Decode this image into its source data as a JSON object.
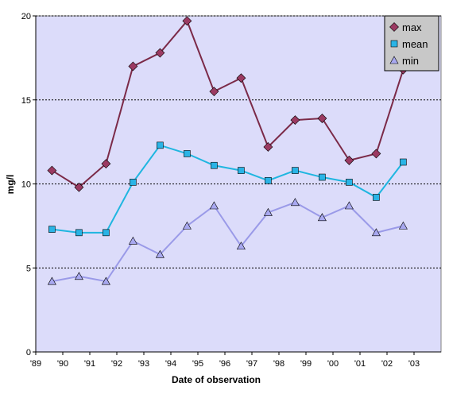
{
  "chart_data": {
    "type": "line",
    "xlabel": "Date of observation",
    "ylabel": "mg/l",
    "ylim": [
      0,
      20
    ],
    "yticks": [
      0,
      5,
      10,
      15,
      20
    ],
    "xticks": [
      "'89",
      "'90",
      "'91",
      "'92",
      "'93",
      "'94",
      "'95",
      "'96",
      "'97",
      "'98",
      "'99",
      "'00",
      "'01",
      "'02",
      "'03"
    ],
    "grid": "horizontal dashed",
    "legend_position": "top-right",
    "plot_background": "#dcdcfa",
    "series": [
      {
        "name": "max",
        "color": "#7b2a48",
        "marker_color": "#9b3a62",
        "marker": "diamond",
        "x": [
          1989.6,
          1990.6,
          1991.6,
          1992.6,
          1993.6,
          1994.6,
          1995.6,
          1996.6,
          1997.6,
          1998.6,
          1999.6,
          2000.6,
          2001.6,
          2002.6
        ],
        "values": [
          10.8,
          9.8,
          11.2,
          17.0,
          17.8,
          19.7,
          15.5,
          16.3,
          12.2,
          13.8,
          13.9,
          11.4,
          11.8,
          16.8
        ]
      },
      {
        "name": "mean",
        "color": "#1fb6e0",
        "marker_color": "#2ab4e6",
        "marker": "square",
        "x": [
          1989.6,
          1990.6,
          1991.6,
          1992.6,
          1993.6,
          1994.6,
          1995.6,
          1996.6,
          1997.6,
          1998.6,
          1999.6,
          2000.6,
          2001.6,
          2002.6
        ],
        "values": [
          7.3,
          7.1,
          7.1,
          10.1,
          12.3,
          11.8,
          11.1,
          10.8,
          10.2,
          10.8,
          10.4,
          10.1,
          9.2,
          11.3
        ]
      },
      {
        "name": "min",
        "color": "#9a9ae8",
        "marker_color": "#a8a8f0",
        "marker": "triangle",
        "x": [
          1989.6,
          1990.6,
          1991.6,
          1992.6,
          1993.6,
          1994.6,
          1995.6,
          1996.6,
          1997.6,
          1998.6,
          1999.6,
          2000.6,
          2001.6,
          2002.6
        ],
        "values": [
          4.2,
          4.5,
          4.2,
          6.6,
          5.8,
          7.5,
          8.7,
          6.3,
          8.3,
          8.9,
          8.0,
          8.7,
          7.1,
          7.5
        ]
      }
    ]
  }
}
